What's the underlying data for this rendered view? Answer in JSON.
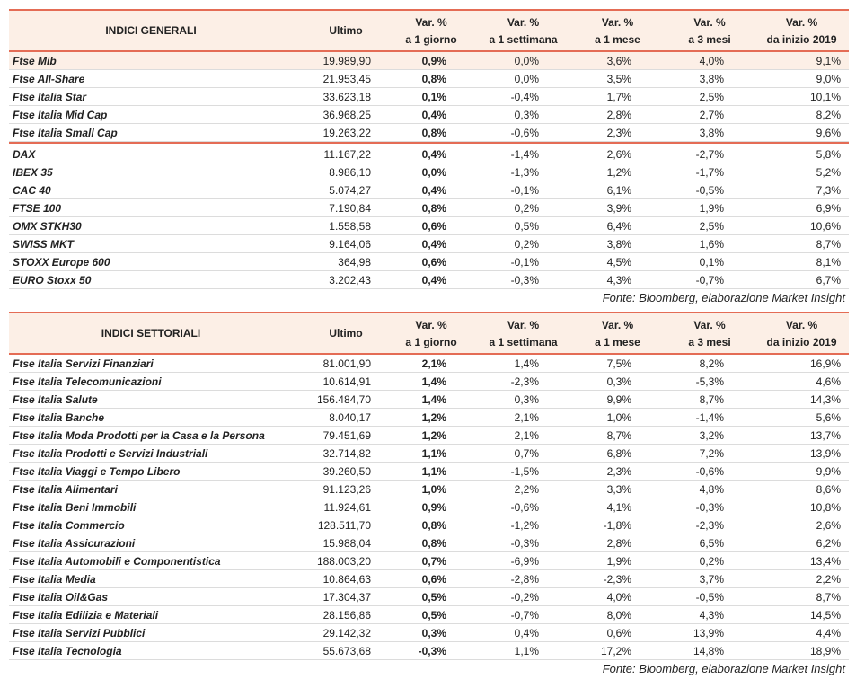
{
  "tables": [
    {
      "header": {
        "label": "INDICI GENERALI",
        "last": "Ultimo",
        "changes": [
          [
            "Var. %",
            "a 1 giorno"
          ],
          [
            "Var. %",
            "a 1 settimana"
          ],
          [
            "Var. %",
            "a 1 mese"
          ],
          [
            "Var. %",
            "a 3 mesi"
          ],
          [
            "Var. %",
            "da inizio 2019"
          ]
        ]
      },
      "groups": [
        [
          [
            "Ftse Mib",
            "19.989,90",
            "0,9%",
            "0,0%",
            "3,6%",
            "4,0%",
            "9,1%"
          ],
          [
            "Ftse All-Share",
            "21.953,45",
            "0,8%",
            "0,0%",
            "3,5%",
            "3,8%",
            "9,0%"
          ],
          [
            "Ftse Italia Star",
            "33.623,18",
            "0,1%",
            "-0,4%",
            "1,7%",
            "2,5%",
            "10,1%"
          ],
          [
            "Ftse Italia Mid Cap",
            "36.968,25",
            "0,4%",
            "0,3%",
            "2,8%",
            "2,7%",
            "8,2%"
          ],
          [
            "Ftse Italia Small Cap",
            "19.263,22",
            "0,8%",
            "-0,6%",
            "2,3%",
            "3,8%",
            "9,6%"
          ]
        ],
        [
          [
            "DAX",
            "11.167,22",
            "0,4%",
            "-1,4%",
            "2,6%",
            "-2,7%",
            "5,8%"
          ],
          [
            "IBEX 35",
            "8.986,10",
            "0,0%",
            "-1,3%",
            "1,2%",
            "-1,7%",
            "5,2%"
          ],
          [
            "CAC 40",
            "5.074,27",
            "0,4%",
            "-0,1%",
            "6,1%",
            "-0,5%",
            "7,3%"
          ],
          [
            "FTSE 100",
            "7.190,84",
            "0,8%",
            "0,2%",
            "3,9%",
            "1,9%",
            "6,9%"
          ],
          [
            "OMX STKH30",
            "1.558,58",
            "0,6%",
            "0,5%",
            "6,4%",
            "2,5%",
            "10,6%"
          ],
          [
            "SWISS MKT",
            "9.164,06",
            "0,4%",
            "0,2%",
            "3,8%",
            "1,6%",
            "8,7%"
          ],
          [
            "STOXX Europe 600",
            "364,98",
            "0,6%",
            "-0,1%",
            "4,5%",
            "0,1%",
            "8,1%"
          ],
          [
            "EURO Stoxx 50",
            "3.202,43",
            "0,4%",
            "-0,3%",
            "4,3%",
            "-0,7%",
            "6,7%"
          ]
        ]
      ],
      "source": "Fonte: Bloomberg, elaborazione Market Insight"
    },
    {
      "header": {
        "label": "INDICI SETTORIALI",
        "last": "Ultimo",
        "changes": [
          [
            "Var. %",
            "a 1 giorno"
          ],
          [
            "Var. %",
            "a 1 settimana"
          ],
          [
            "Var. %",
            "a 1 mese"
          ],
          [
            "Var. %",
            "a 3 mesi"
          ],
          [
            "Var. %",
            "da inizio 2019"
          ]
        ]
      },
      "groups": [
        [
          [
            "Ftse Italia Servizi Finanziari",
            "81.001,90",
            "2,1%",
            "1,4%",
            "7,5%",
            "8,2%",
            "16,9%"
          ],
          [
            "Ftse Italia Telecomunicazioni",
            "10.614,91",
            "1,4%",
            "-2,3%",
            "0,3%",
            "-5,3%",
            "4,6%"
          ],
          [
            "Ftse Italia Salute",
            "156.484,70",
            "1,4%",
            "0,3%",
            "9,9%",
            "8,7%",
            "14,3%"
          ],
          [
            "Ftse Italia Banche",
            "8.040,17",
            "1,2%",
            "2,1%",
            "1,0%",
            "-1,4%",
            "5,6%"
          ],
          [
            "Ftse Italia Moda Prodotti per la Casa e la Persona",
            "79.451,69",
            "1,2%",
            "2,1%",
            "8,7%",
            "3,2%",
            "13,7%"
          ],
          [
            "Ftse Italia Prodotti e Servizi Industriali",
            "32.714,82",
            "1,1%",
            "0,7%",
            "6,8%",
            "7,2%",
            "13,9%"
          ],
          [
            "Ftse Italia Viaggi e Tempo Libero",
            "39.260,50",
            "1,1%",
            "-1,5%",
            "2,3%",
            "-0,6%",
            "9,9%"
          ],
          [
            "Ftse Italia Alimentari",
            "91.123,26",
            "1,0%",
            "2,2%",
            "3,3%",
            "4,8%",
            "8,6%"
          ],
          [
            "Ftse Italia Beni Immobili",
            "11.924,61",
            "0,9%",
            "-0,6%",
            "4,1%",
            "-0,3%",
            "10,8%"
          ],
          [
            "Ftse Italia Commercio",
            "128.511,70",
            "0,8%",
            "-1,2%",
            "-1,8%",
            "-2,3%",
            "2,6%"
          ],
          [
            "Ftse Italia Assicurazioni",
            "15.988,04",
            "0,8%",
            "-0,3%",
            "2,8%",
            "6,5%",
            "6,2%"
          ],
          [
            "Ftse Italia Automobili e Componentistica",
            "188.003,20",
            "0,7%",
            "-6,9%",
            "1,9%",
            "0,2%",
            "13,4%"
          ],
          [
            "Ftse Italia Media",
            "10.864,63",
            "0,6%",
            "-2,8%",
            "-2,3%",
            "3,7%",
            "2,2%"
          ],
          [
            "Ftse Italia Oil&Gas",
            "17.304,37",
            "0,5%",
            "-0,2%",
            "4,0%",
            "-0,5%",
            "8,7%"
          ],
          [
            "Ftse Italia Edilizia e Materiali",
            "28.156,86",
            "0,5%",
            "-0,7%",
            "8,0%",
            "4,3%",
            "14,5%"
          ],
          [
            "Ftse Italia Servizi Pubblici",
            "29.142,32",
            "0,3%",
            "0,4%",
            "0,6%",
            "13,9%",
            "4,4%"
          ],
          [
            "Ftse Italia Tecnologia",
            "55.673,68",
            "-0,3%",
            "1,1%",
            "17,2%",
            "14,8%",
            "18,9%"
          ]
        ]
      ],
      "source": "Fonte: Bloomberg, elaborazione Market Insight"
    }
  ]
}
